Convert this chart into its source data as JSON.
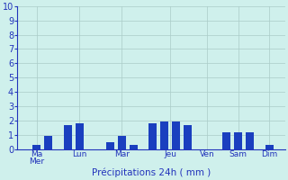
{
  "day_labels": [
    "Ma\nMer",
    "Lun",
    "Mar",
    "Jeu",
    "Ven",
    "Sam",
    "Dim"
  ],
  "bar_groups": [
    [
      0.0,
      0.3,
      0.9
    ],
    [
      1.7,
      1.8,
      0.0
    ],
    [
      0.5,
      0.9,
      0.3
    ],
    [
      1.8,
      1.9,
      1.9,
      1.7
    ],
    [
      0.0
    ],
    [
      1.2,
      1.2,
      1.2
    ],
    [
      0.3
    ]
  ],
  "xlabel": "Précipitations 24h ( mm )",
  "ylim": [
    0,
    10
  ],
  "yticks": [
    0,
    1,
    2,
    3,
    4,
    5,
    6,
    7,
    8,
    9,
    10
  ],
  "background_color": "#cff0ec",
  "grid_color": "#aaccc8",
  "text_color": "#2233bb",
  "bar_color": "#1a3fbf",
  "bar_width": 0.7
}
